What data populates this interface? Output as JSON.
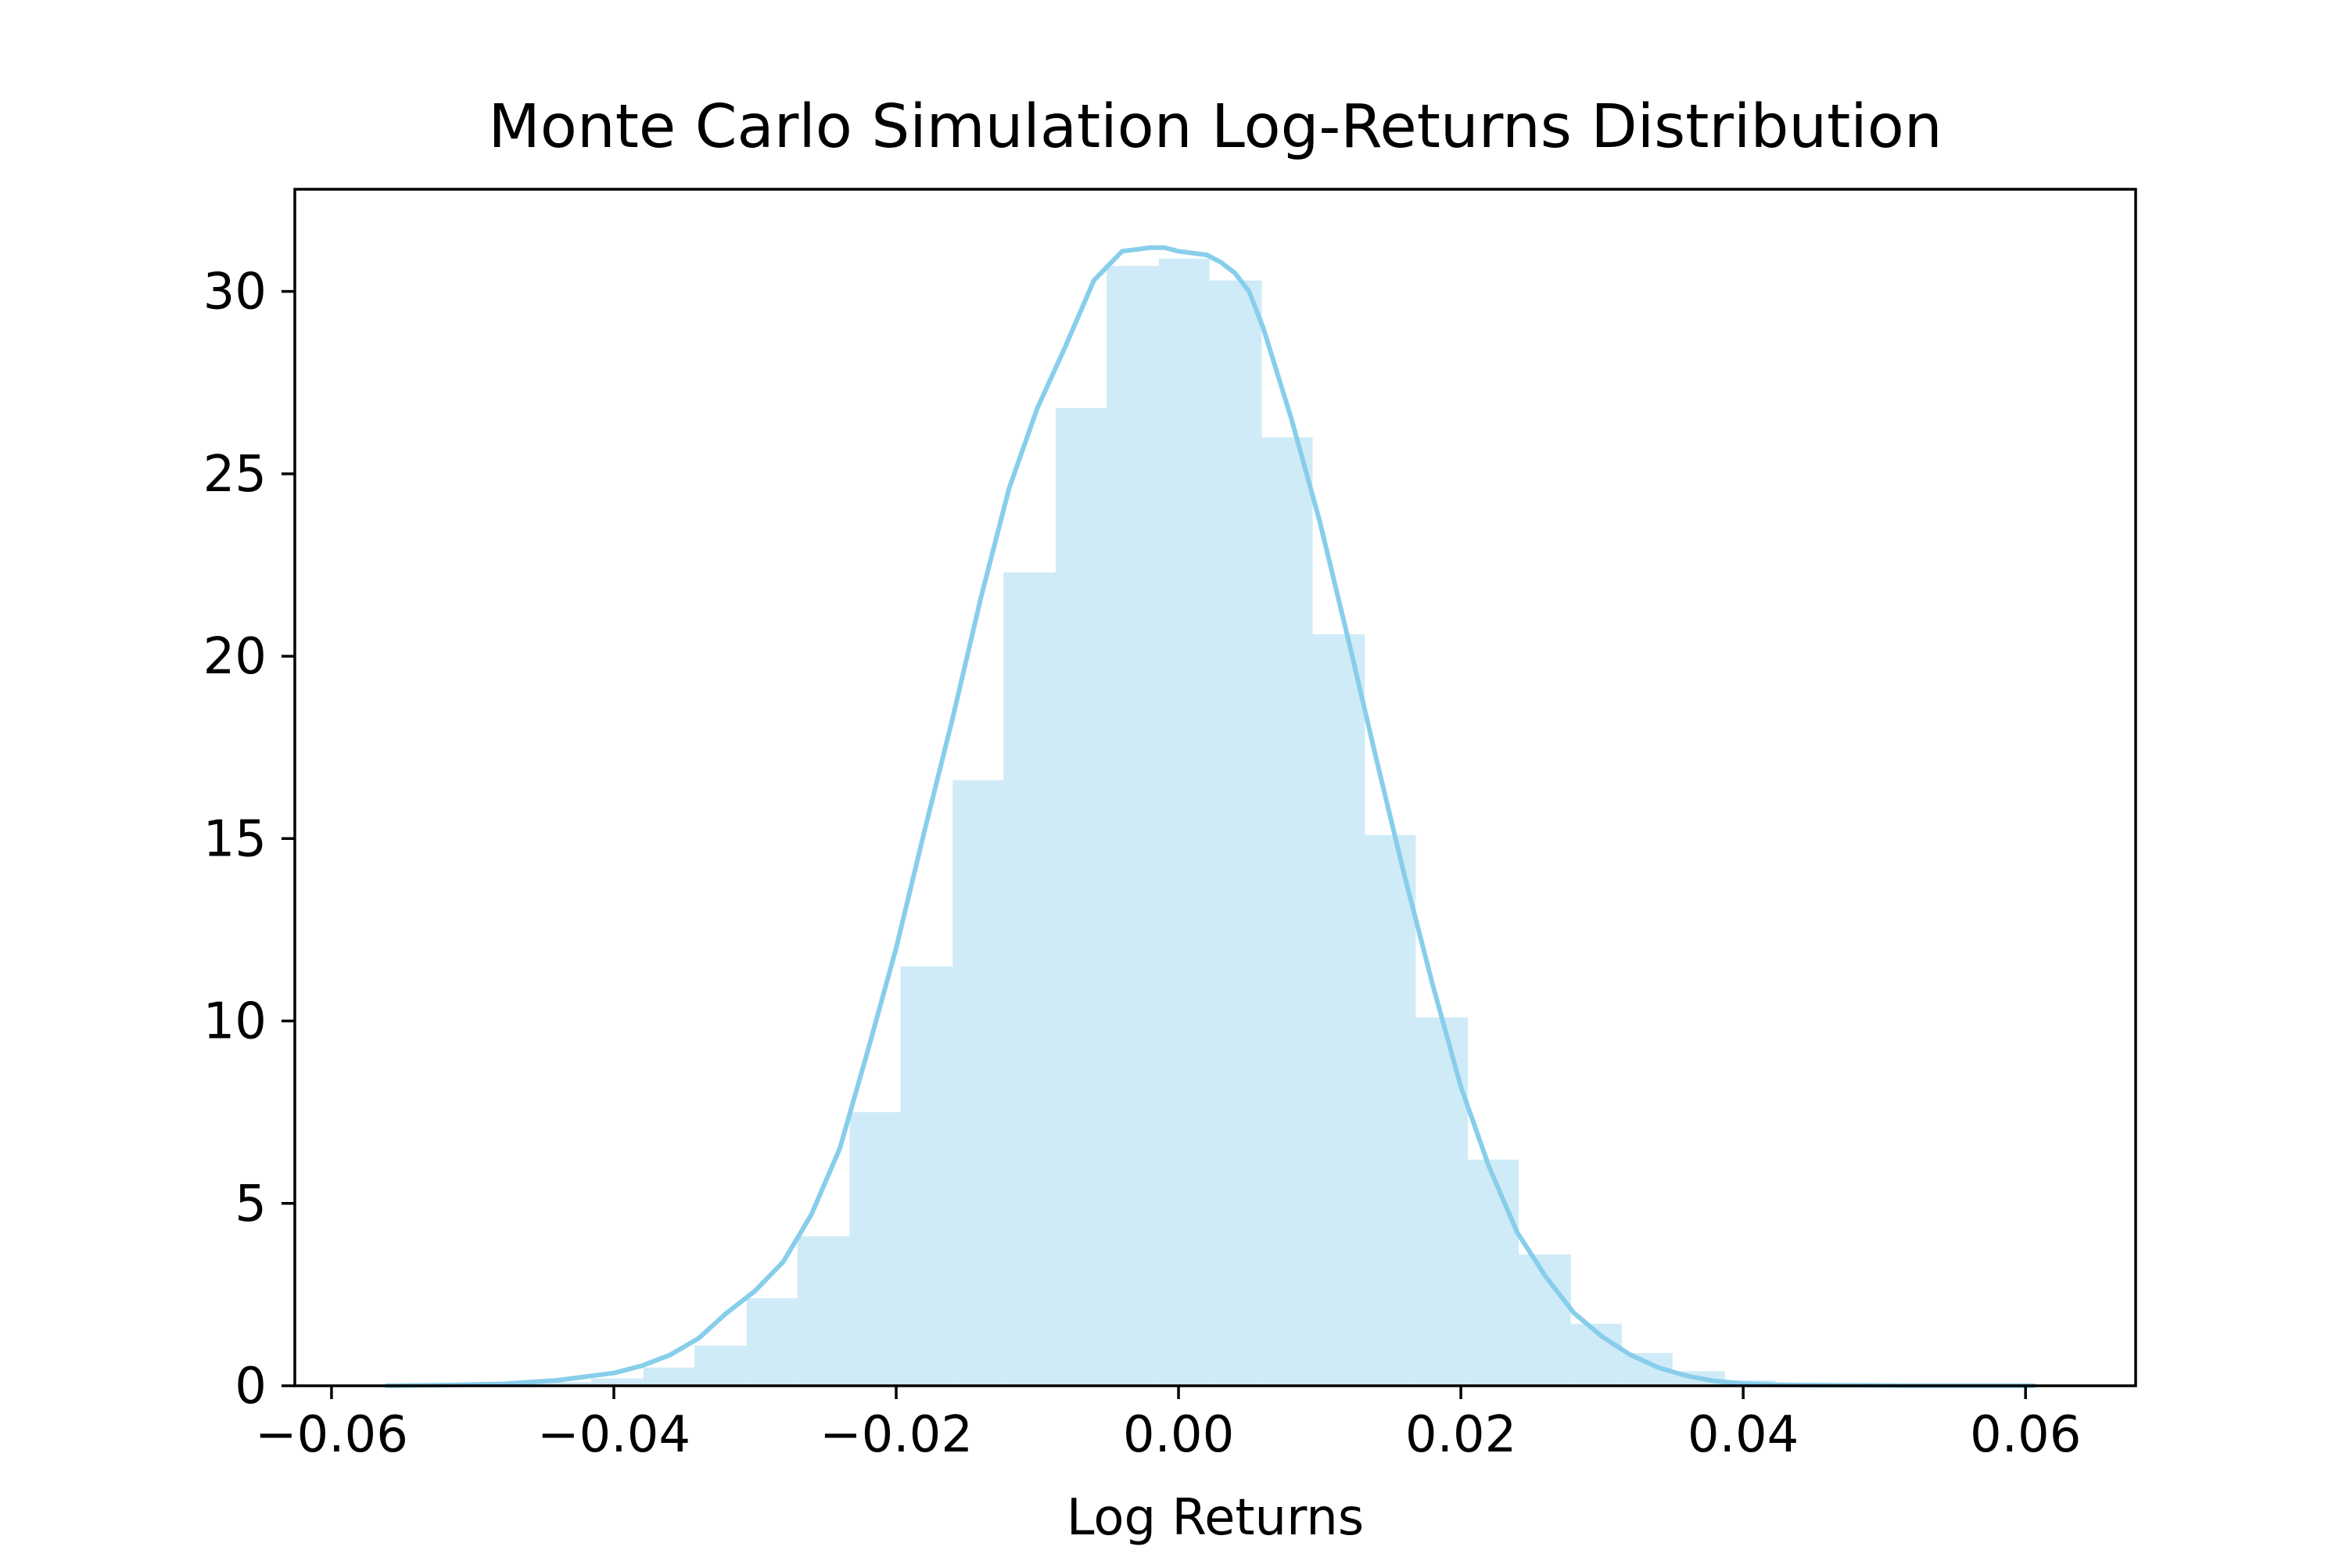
{
  "colors": {
    "bar": "#87ceeb",
    "bar_opacity": 0.4,
    "kde_line": "#87ceeb",
    "axes": "#000000",
    "background": "#ffffff"
  },
  "chart_data": {
    "type": "bar",
    "title": "Monte Carlo Simulation Log-Returns Distribution",
    "xlabel": "Log Returns",
    "ylabel": "",
    "xlim": [
      -0.0626,
      0.0678
    ],
    "ylim": [
      0,
      32.8
    ],
    "grid": false,
    "legend": "none",
    "x_ticks": [
      {
        "value": -0.06,
        "label": "−0.06"
      },
      {
        "value": -0.04,
        "label": "−0.04"
      },
      {
        "value": -0.02,
        "label": "−0.02"
      },
      {
        "value": 0.0,
        "label": "0.00"
      },
      {
        "value": 0.02,
        "label": "0.02"
      },
      {
        "value": 0.04,
        "label": "0.04"
      },
      {
        "value": 0.06,
        "label": "0.06"
      }
    ],
    "y_ticks": [
      {
        "value": 0,
        "label": "0"
      },
      {
        "value": 5,
        "label": "5"
      },
      {
        "value": 10,
        "label": "10"
      },
      {
        "value": 15,
        "label": "15"
      },
      {
        "value": 20,
        "label": "20"
      },
      {
        "value": 25,
        "label": "25"
      },
      {
        "value": 30,
        "label": "30"
      }
    ],
    "histogram": {
      "bin_edges": [
        -0.0561,
        -0.0525,
        -0.0488,
        -0.0452,
        -0.0416,
        -0.0379,
        -0.0343,
        -0.0306,
        -0.027,
        -0.0233,
        -0.0197,
        -0.016,
        -0.0124,
        -0.0087,
        -0.0051,
        -0.0014,
        0.0022,
        0.0059,
        0.0095,
        0.0132,
        0.0168,
        0.0205,
        0.0241,
        0.0278,
        0.0314,
        0.035,
        0.0387,
        0.0423,
        0.046,
        0.0496,
        0.0533,
        0.0569,
        0.0606
      ],
      "values": [
        0.02,
        0.03,
        0.05,
        0.1,
        0.2,
        0.5,
        1.1,
        2.4,
        4.1,
        7.5,
        11.5,
        16.6,
        22.3,
        26.8,
        30.7,
        30.9,
        30.3,
        26.0,
        20.6,
        15.1,
        10.1,
        6.2,
        3.6,
        1.7,
        0.9,
        0.4,
        0.15,
        0.08,
        0.04,
        0.02,
        0.01,
        0.01
      ]
    },
    "kde": {
      "x": [
        -0.0561,
        -0.052,
        -0.048,
        -0.044,
        -0.04,
        -0.038,
        -0.036,
        -0.034,
        -0.032,
        -0.03,
        -0.028,
        -0.026,
        -0.024,
        -0.022,
        -0.02,
        -0.018,
        -0.016,
        -0.014,
        -0.012,
        -0.01,
        -0.008,
        -0.006,
        -0.004,
        -0.002,
        -0.001,
        0.0,
        0.002,
        0.003,
        0.004,
        0.005,
        0.006,
        0.008,
        0.01,
        0.012,
        0.014,
        0.016,
        0.018,
        0.02,
        0.022,
        0.024,
        0.026,
        0.028,
        0.03,
        0.032,
        0.034,
        0.036,
        0.038,
        0.04,
        0.042,
        0.044,
        0.048,
        0.052,
        0.056,
        0.0606
      ],
      "y": [
        0.0,
        0.02,
        0.05,
        0.15,
        0.35,
        0.55,
        0.85,
        1.3,
        2.0,
        2.6,
        3.4,
        4.7,
        6.5,
        9.2,
        12.0,
        15.2,
        18.3,
        21.6,
        24.6,
        26.8,
        28.5,
        30.3,
        31.1,
        31.2,
        31.2,
        31.1,
        31.0,
        30.8,
        30.5,
        30.0,
        29.0,
        26.5,
        23.7,
        20.5,
        17.2,
        14.0,
        11.0,
        8.2,
        6.0,
        4.2,
        3.0,
        2.0,
        1.35,
        0.85,
        0.5,
        0.27,
        0.13,
        0.06,
        0.03,
        0.02,
        0.01,
        0.0,
        0.0,
        0.0
      ]
    }
  }
}
